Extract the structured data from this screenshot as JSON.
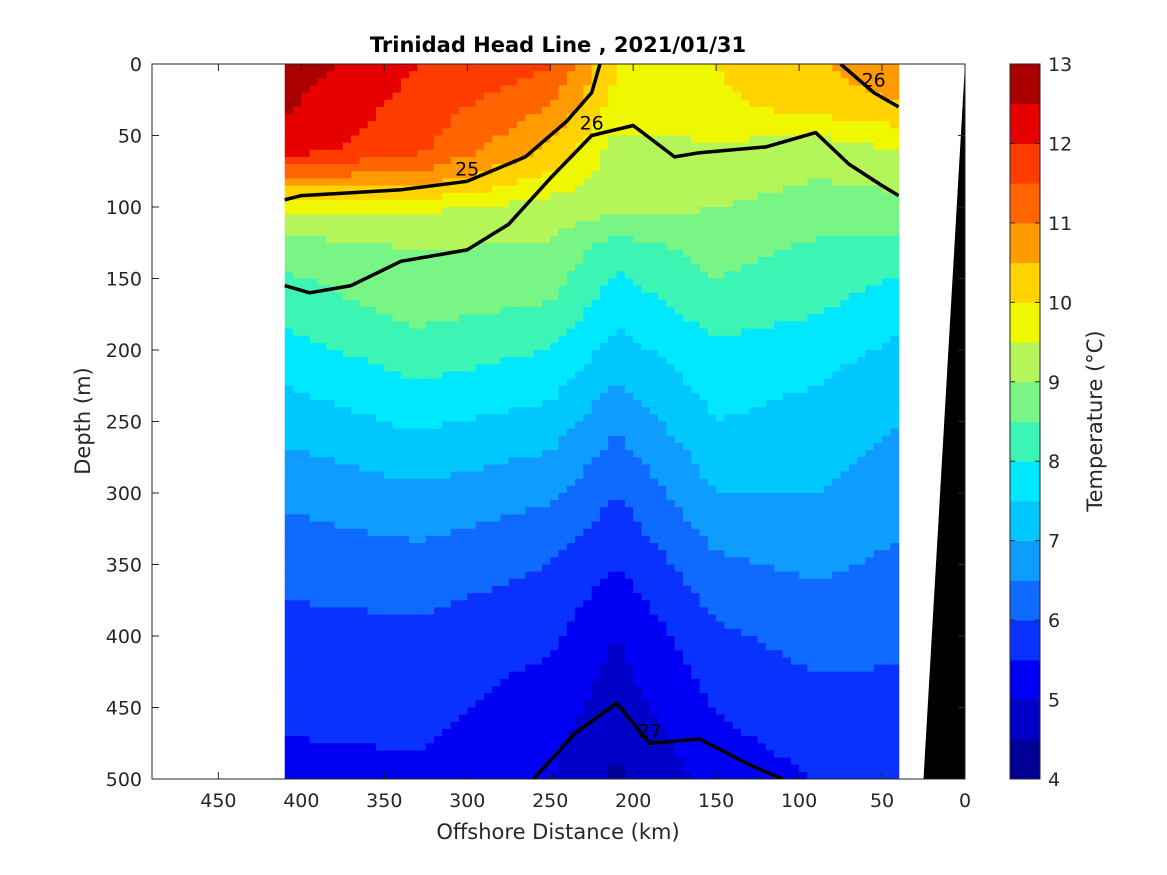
{
  "chart_data": {
    "type": "heatmap",
    "title": "Trinidad Head Line , 2021/01/31",
    "xlabel": "Offshore Distance (km)",
    "ylabel": "Depth (m)",
    "xlim": [
      490,
      0
    ],
    "ylim": [
      0,
      500
    ],
    "x_reversed": true,
    "y_reversed": true,
    "xticks": [
      450,
      400,
      350,
      300,
      250,
      200,
      150,
      100,
      50,
      0
    ],
    "yticks": [
      0,
      50,
      100,
      150,
      200,
      250,
      300,
      350,
      400,
      450,
      500
    ],
    "data_extent_km": [
      410,
      40
    ],
    "colorbar": {
      "label": "Temperature (°C)",
      "min": 4,
      "max": 13,
      "ticks": [
        4,
        5,
        6,
        7,
        8,
        9,
        10,
        11,
        12,
        13
      ],
      "levels": [
        {
          "t": 4.0,
          "color": "#000096"
        },
        {
          "t": 4.5,
          "color": "#0000c8"
        },
        {
          "t": 5.0,
          "color": "#0000f5"
        },
        {
          "t": 5.5,
          "color": "#0a32ff"
        },
        {
          "t": 6.0,
          "color": "#0f6aff"
        },
        {
          "t": 6.5,
          "color": "#0f9cff"
        },
        {
          "t": 7.0,
          "color": "#00c8ff"
        },
        {
          "t": 7.5,
          "color": "#00e8ff"
        },
        {
          "t": 8.0,
          "color": "#3cf5b4"
        },
        {
          "t": 8.5,
          "color": "#78f584"
        },
        {
          "t": 9.0,
          "color": "#b4f55a"
        },
        {
          "t": 9.5,
          "color": "#f0f800"
        },
        {
          "t": 10.0,
          "color": "#ffd200"
        },
        {
          "t": 10.5,
          "color": "#ff9b00"
        },
        {
          "t": 11.0,
          "color": "#ff6400"
        },
        {
          "t": 11.5,
          "color": "#ff3c00"
        },
        {
          "t": 12.0,
          "color": "#e60000"
        },
        {
          "t": 12.5,
          "color": "#aa0000"
        }
      ]
    },
    "temperature_profiles": [
      {
        "x": 410,
        "depth": [
          0,
          60,
          85,
          100,
          130,
          160,
          200,
          250,
          300,
          350,
          400,
          440,
          500
        ],
        "temp": [
          12.8,
          12.3,
          10.6,
          9.6,
          8.7,
          8.3,
          7.8,
          7.2,
          6.6,
          6.2,
          5.8,
          5.6,
          5.4
        ]
      },
      {
        "x": 330,
        "depth": [
          0,
          60,
          85,
          100,
          130,
          160,
          200,
          250,
          300,
          350,
          400,
          440,
          500
        ],
        "temp": [
          12.0,
          11.6,
          10.6,
          9.6,
          9.0,
          8.8,
          8.3,
          7.6,
          6.9,
          6.3,
          5.9,
          5.7,
          5.4
        ]
      },
      {
        "x": 250,
        "depth": [
          0,
          40,
          60,
          100,
          130,
          160,
          200,
          250,
          300,
          350,
          400,
          440,
          500
        ],
        "temp": [
          11.6,
          10.8,
          10.4,
          9.3,
          8.9,
          8.6,
          8.0,
          7.3,
          6.6,
          6.0,
          5.6,
          5.3,
          5.0
        ]
      },
      {
        "x": 210,
        "depth": [
          0,
          30,
          60,
          100,
          130,
          160,
          200,
          250,
          300,
          350,
          400,
          440,
          500
        ],
        "temp": [
          10.0,
          9.8,
          9.3,
          9.2,
          8.2,
          7.8,
          7.3,
          6.6,
          6.0,
          5.5,
          5.0,
          4.8,
          4.4
        ]
      },
      {
        "x": 150,
        "depth": [
          0,
          30,
          60,
          100,
          130,
          160,
          200,
          250,
          300,
          350,
          400,
          440,
          500
        ],
        "temp": [
          10.0,
          9.9,
          9.4,
          9.0,
          8.7,
          8.4,
          7.9,
          7.5,
          7.0,
          6.4,
          5.9,
          5.6,
          5.2
        ]
      },
      {
        "x": 90,
        "depth": [
          0,
          30,
          60,
          100,
          130,
          160,
          200,
          250,
          300,
          350,
          400,
          440,
          500
        ],
        "temp": [
          10.4,
          10.2,
          9.2,
          8.8,
          8.4,
          8.2,
          7.7,
          7.3,
          7.0,
          6.6,
          6.2,
          5.9,
          5.5
        ]
      },
      {
        "x": 40,
        "depth": [
          0,
          30,
          60,
          100,
          130,
          160,
          200,
          250,
          300,
          350,
          400,
          440,
          500
        ],
        "temp": [
          11.0,
          10.4,
          9.5,
          8.8,
          8.3,
          7.8,
          7.4,
          7.0,
          6.7,
          6.4,
          6.1,
          5.9,
          5.6
        ]
      }
    ],
    "density_contours": [
      {
        "level": 25,
        "label": "25",
        "bold": true,
        "points": [
          [
            220,
            0
          ],
          [
            225,
            20
          ],
          [
            240,
            40
          ],
          [
            265,
            65
          ],
          [
            300,
            82
          ],
          [
            340,
            88
          ],
          [
            370,
            90
          ],
          [
            400,
            92
          ],
          [
            410,
            95
          ]
        ]
      },
      {
        "level": 26,
        "label": "26",
        "bold": true,
        "points": [
          [
            40,
            92
          ],
          [
            50,
            85
          ],
          [
            70,
            70
          ],
          [
            90,
            48
          ],
          [
            120,
            58
          ],
          [
            160,
            62
          ],
          [
            175,
            65
          ],
          [
            200,
            43
          ],
          [
            225,
            50
          ],
          [
            250,
            80
          ],
          [
            275,
            112
          ],
          [
            300,
            130
          ],
          [
            340,
            138
          ],
          [
            370,
            155
          ],
          [
            395,
            160
          ],
          [
            410,
            155
          ]
        ]
      },
      {
        "level": 26,
        "label": "26",
        "bold": true,
        "points": [
          [
            75,
            0
          ],
          [
            55,
            20
          ],
          [
            40,
            30
          ]
        ]
      },
      {
        "level": 27,
        "label": "27",
        "bold": true,
        "points": [
          [
            110,
            500
          ],
          [
            130,
            490
          ],
          [
            160,
            472
          ],
          [
            190,
            475
          ],
          [
            210,
            447
          ],
          [
            235,
            468
          ],
          [
            260,
            500
          ]
        ]
      }
    ],
    "colorbar_label_text": "Temperature (°C)",
    "seafloor": {
      "x": [
        0,
        25,
        0
      ],
      "depth": [
        0,
        500,
        500
      ]
    }
  }
}
